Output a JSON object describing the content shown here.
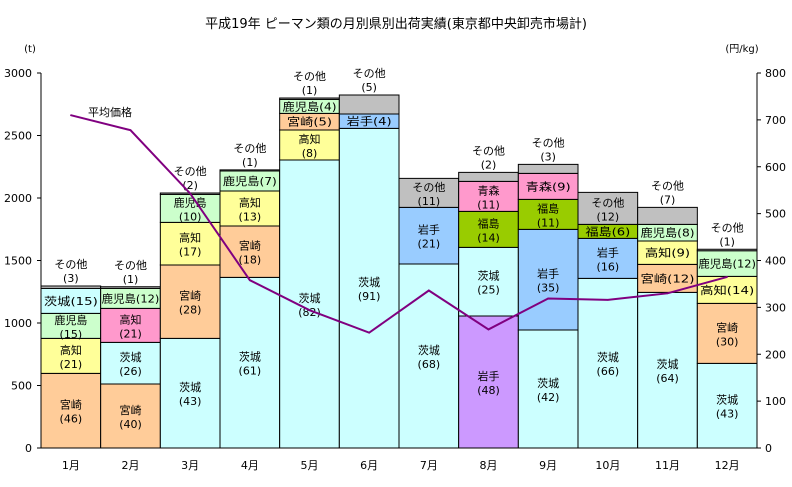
{
  "chart_data": {
    "type": "bar",
    "stacked": true,
    "title": "平成19年 ピーマン類の月別県別出荷実績(東京都中央卸売市場計)",
    "ylabel": "(t)",
    "y2label": "(円/kg)",
    "ylim": [
      0,
      3000
    ],
    "y2lim": [
      0,
      800
    ],
    "yticks": [
      "0",
      "500",
      "1000",
      "1500",
      "2000",
      "2500",
      "3000"
    ],
    "y2ticks": [
      "0",
      "100",
      "200",
      "300",
      "400",
      "500",
      "600",
      "700",
      "800"
    ],
    "categories": [
      "1月",
      "2月",
      "3月",
      "4月",
      "5月",
      "6月",
      "7月",
      "8月",
      "9月",
      "10月",
      "11月",
      "12月"
    ],
    "colors": {
      "宮崎": "#FFCC99",
      "高知": "#FFFF99",
      "鹿児島": "#CCFFCC",
      "茨城": "#CCFFFF",
      "岩手": "#99CCFF",
      "福島": "#99CC00",
      "青森": "#FF99CC",
      "その他": "#C0C0C0",
      "高知_feb": "#FF99CC",
      "岩手_aug": "#CC99FF"
    },
    "note": "label modes: 2=two-line inside, 1=one-line inside, a=above bar",
    "bars": [
      [
        [
          "宮崎",
          597,
          46,
          "2"
        ],
        [
          "高知",
          280,
          21,
          "2"
        ],
        [
          "鹿児島",
          200,
          15,
          "2"
        ],
        [
          "茨城",
          200,
          15,
          "1"
        ],
        [
          "その他",
          19,
          3,
          "a"
        ]
      ],
      [
        [
          "宮崎",
          512,
          40,
          "2"
        ],
        [
          "茨城",
          333,
          26,
          "2"
        ],
        [
          "高知",
          272,
          21,
          "2",
          "高知_feb"
        ],
        [
          "鹿児島",
          160,
          12,
          "1"
        ],
        [
          "その他",
          13,
          1,
          "a"
        ]
      ],
      [
        [
          "茨城",
          877,
          43,
          "2"
        ],
        [
          "宮崎",
          587,
          28,
          "2"
        ],
        [
          "高知",
          341,
          17,
          "2"
        ],
        [
          "鹿児島",
          224,
          10,
          "2"
        ],
        [
          "その他",
          11,
          2,
          "a"
        ]
      ],
      [
        [
          "茨城",
          1365,
          61,
          "2"
        ],
        [
          "宮崎",
          411,
          18,
          "2"
        ],
        [
          "高知",
          280,
          13,
          "2"
        ],
        [
          "鹿児島",
          160,
          7,
          "1"
        ],
        [
          "その他",
          9,
          1,
          "a"
        ]
      ],
      [
        [
          "茨城",
          2304,
          82,
          "2"
        ],
        [
          "高知",
          240,
          8,
          "2"
        ],
        [
          "宮崎",
          133,
          5,
          "1"
        ],
        [
          "鹿児島",
          112,
          4,
          "1"
        ],
        [
          "その他",
          11,
          1,
          "a"
        ]
      ],
      [
        [
          "茨城",
          2557,
          91,
          "2"
        ],
        [
          "岩手",
          115,
          4,
          "1"
        ],
        [
          "その他",
          152,
          5,
          "a"
        ]
      ],
      [
        [
          "茨城",
          1472,
          68,
          "2"
        ],
        [
          "岩手",
          453,
          21,
          "2"
        ],
        [
          "その他",
          232,
          11,
          "2"
        ]
      ],
      [
        [
          "岩手",
          1056,
          48,
          "2",
          "岩手_aug"
        ],
        [
          "茨城",
          549,
          25,
          "2"
        ],
        [
          "福島",
          288,
          14,
          "2"
        ],
        [
          "青森",
          240,
          11,
          "2"
        ],
        [
          "その他",
          72,
          2,
          "a"
        ]
      ],
      [
        [
          "茨城",
          944,
          42,
          "2"
        ],
        [
          "岩手",
          805,
          35,
          "2"
        ],
        [
          "福島",
          240,
          11,
          "2"
        ],
        [
          "青森",
          208,
          9,
          "1"
        ],
        [
          "その他",
          72,
          3,
          "a"
        ]
      ],
      [
        [
          "茨城",
          1357,
          66,
          "2"
        ],
        [
          "岩手",
          320,
          16,
          "2"
        ],
        [
          "福島",
          112,
          6,
          "1"
        ],
        [
          "その他",
          256,
          12,
          "2"
        ]
      ],
      [
        [
          "茨城",
          1245,
          64,
          "2"
        ],
        [
          "宮崎",
          224,
          12,
          "1"
        ],
        [
          "高知",
          187,
          9,
          "1"
        ],
        [
          "鹿児島",
          133,
          8,
          "1"
        ],
        [
          "その他",
          136,
          7,
          "a"
        ]
      ],
      [
        [
          "茨城",
          677,
          43,
          "2"
        ],
        [
          "宮崎",
          480,
          30,
          "2"
        ],
        [
          "高知",
          216,
          14,
          "1"
        ],
        [
          "鹿児島",
          205,
          12,
          "1"
        ],
        [
          "その他",
          12,
          1,
          "a"
        ]
      ]
    ],
    "line": {
      "name": "平均価格",
      "color": "#800080",
      "values": [
        710,
        678,
        543,
        358,
        294,
        246,
        336,
        253,
        319,
        316,
        330,
        365
      ]
    }
  }
}
